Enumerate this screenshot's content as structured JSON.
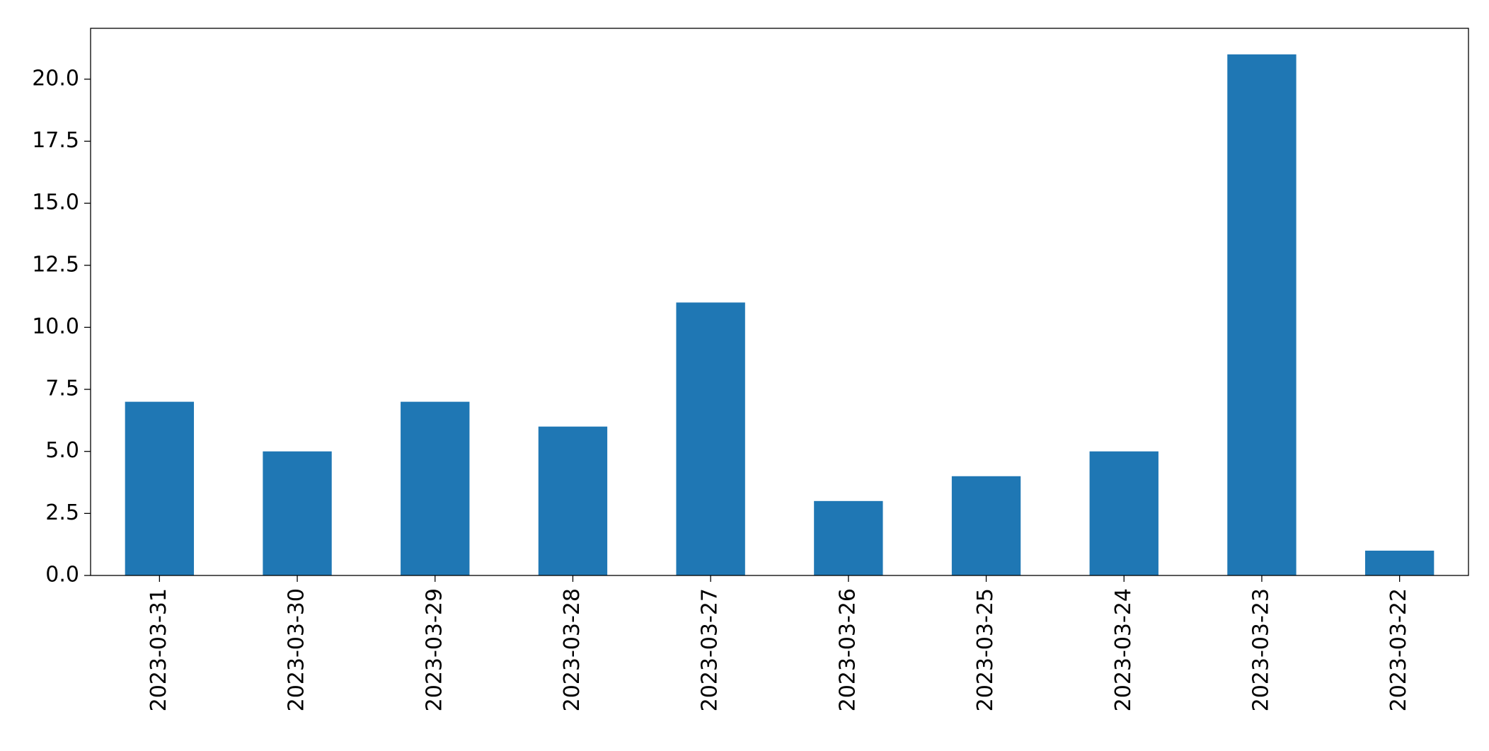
{
  "chart_data": {
    "type": "bar",
    "categories": [
      "2023-03-31",
      "2023-03-30",
      "2023-03-29",
      "2023-03-28",
      "2023-03-27",
      "2023-03-26",
      "2023-03-25",
      "2023-03-24",
      "2023-03-23",
      "2023-03-22"
    ],
    "values": [
      7,
      5,
      7,
      6,
      11,
      3,
      4,
      5,
      21,
      1
    ],
    "color": "#1f77b4",
    "ylim": [
      0,
      22.05
    ],
    "yticks": [
      {
        "value": 0,
        "label": "0.0"
      },
      2.5,
      {
        "value": 5,
        "label": "5.0"
      },
      7.5,
      {
        "value": 10,
        "label": "10.0"
      },
      12.5,
      {
        "value": 15,
        "label": "15.0"
      },
      17.5,
      {
        "value": 20,
        "label": "20.0"
      }
    ],
    "grid": false
  }
}
